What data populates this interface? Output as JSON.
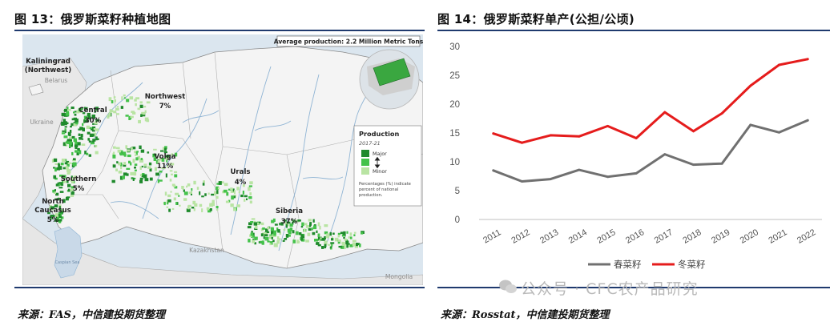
{
  "left": {
    "title": "图 13：俄罗斯菜籽种植地图",
    "source": "来源：FAS，中信建投期货整理",
    "map": {
      "banner": "Average production: 2.2 Million Metric Tons",
      "regions": [
        {
          "id": "kaliningrad",
          "name": "Kaliningrad",
          "sub": "(Northwest)",
          "pct": ""
        },
        {
          "id": "northwest",
          "name": "Northwest",
          "sub": "",
          "pct": "7%"
        },
        {
          "id": "central",
          "name": "Central",
          "sub": "",
          "pct": "30%"
        },
        {
          "id": "volga",
          "name": "Volga",
          "sub": "",
          "pct": "11%"
        },
        {
          "id": "southern",
          "name": "Southern",
          "sub": "",
          "pct": "5%"
        },
        {
          "id": "north-caucasus",
          "name": "North",
          "sub": "Caucasus",
          "pct": "5%"
        },
        {
          "id": "urals",
          "name": "Urals",
          "sub": "",
          "pct": "4%"
        },
        {
          "id": "siberia",
          "name": "Siberia",
          "sub": "",
          "pct": "37%"
        }
      ],
      "countries": [
        "Belarus",
        "Ukraine",
        "Kazakhstan",
        "Mongolia",
        "Caspian Sea"
      ],
      "legend": {
        "title": "Production",
        "period": "2017-21",
        "major": "Major",
        "minor": "Minor",
        "note": [
          "Percentages (%) indicate",
          "percent of national",
          "production."
        ]
      },
      "colors": {
        "major": "#1f8a2c",
        "mid": "#44c24a",
        "minor": "#b9e4a3",
        "land": "#f2f2f2",
        "water": "#c9d9e8",
        "river": "#8fb4d4",
        "border": "#9a9a9a"
      }
    }
  },
  "right": {
    "title": "图 14：俄罗斯菜籽单产(公担/公顷)",
    "source": "来源：Rosstat，中信建投期货整理",
    "chart_data": {
      "type": "line",
      "title": "图 14：俄罗斯菜籽单产(公担/公顷)",
      "x": [
        "2011",
        "2012",
        "2013",
        "2014",
        "2015",
        "2016",
        "2017",
        "2018",
        "2019",
        "2020",
        "2021",
        "2022"
      ],
      "series": [
        {
          "name": "春菜籽",
          "color": "#707070",
          "values": [
            8.5,
            6.6,
            7.0,
            8.6,
            7.4,
            8.0,
            11.3,
            9.5,
            9.7,
            16.4,
            15.1,
            17.2
          ]
        },
        {
          "name": "冬菜籽",
          "color": "#e51c1c",
          "values": [
            14.9,
            13.3,
            14.6,
            14.4,
            16.2,
            14.1,
            18.6,
            15.3,
            18.4,
            23.2,
            26.8,
            27.8
          ]
        }
      ],
      "ylim": [
        0,
        30
      ],
      "yticks": [
        0,
        5,
        10,
        15,
        20,
        25,
        30
      ],
      "grid": false,
      "legend": "bottom"
    }
  },
  "watermark": "公众号 · CFC农产品研究"
}
